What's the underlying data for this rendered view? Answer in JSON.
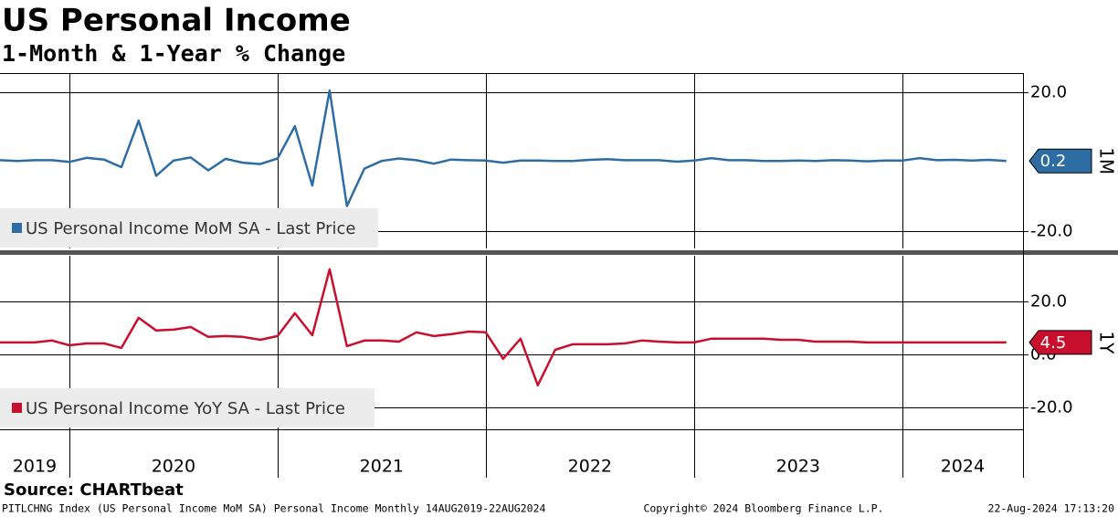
{
  "title": "US Personal Income",
  "subtitle": "1-Month & 1-Year % Change",
  "chart_data": [
    {
      "type": "line",
      "axis_label": "1M",
      "x": [
        2019.667,
        2019.75,
        2019.833,
        2019.917,
        2020,
        2020.083,
        2020.167,
        2020.25,
        2020.333,
        2020.417,
        2020.5,
        2020.583,
        2020.667,
        2020.75,
        2020.833,
        2020.917,
        2021,
        2021.083,
        2021.167,
        2021.25,
        2021.333,
        2021.417,
        2021.5,
        2021.583,
        2021.667,
        2021.75,
        2021.833,
        2021.917,
        2022,
        2022.083,
        2022.167,
        2022.25,
        2022.333,
        2022.417,
        2022.5,
        2022.583,
        2022.667,
        2022.75,
        2022.833,
        2022.917,
        2023,
        2023.083,
        2023.167,
        2023.25,
        2023.333,
        2023.417,
        2023.5,
        2023.583,
        2023.667,
        2023.75,
        2023.833,
        2023.917,
        2024,
        2024.083,
        2024.167,
        2024.25,
        2024.333,
        2024.417,
        2024.5
      ],
      "xlim": [
        2019.667,
        2024.58
      ],
      "xticks": [
        2020,
        2021,
        2022,
        2023,
        2024
      ],
      "ylim": [
        -25,
        25.5
      ],
      "yticks": [
        {
          "value": 20,
          "label": "20.0"
        },
        {
          "value": -20,
          "label": "-20.0"
        }
      ],
      "grid": true,
      "series": [
        {
          "name": "US Personal Income MoM SA - Last Price",
          "color": "#2e6da4",
          "values": [
            0.4,
            0.2,
            0.4,
            0.4,
            -0.1,
            1.1,
            0.6,
            -1.6,
            11.8,
            -4.1,
            0.3,
            1.2,
            -2.5,
            0.8,
            -0.3,
            -0.7,
            0.9,
            10.2,
            -6.9,
            20.5,
            -12.8,
            -2.0,
            0.2,
            0.9,
            0.4,
            -0.6,
            0.6,
            0.4,
            0.3,
            -0.3,
            0.3,
            0.3,
            0.2,
            0.2,
            0.5,
            0.7,
            0.4,
            0.4,
            0.4,
            0.0,
            0.3,
            1.0,
            0.4,
            0.4,
            0.2,
            0.2,
            0.3,
            0.2,
            0.4,
            0.3,
            0.1,
            0.3,
            0.3,
            1.0,
            0.4,
            0.5,
            0.3,
            0.5,
            0.2
          ]
        }
      ]
    },
    {
      "type": "line",
      "axis_label": "1Y",
      "x": [
        2019.667,
        2019.75,
        2019.833,
        2019.917,
        2020,
        2020.083,
        2020.167,
        2020.25,
        2020.333,
        2020.417,
        2020.5,
        2020.583,
        2020.667,
        2020.75,
        2020.833,
        2020.917,
        2021,
        2021.083,
        2021.167,
        2021.25,
        2021.333,
        2021.417,
        2021.5,
        2021.583,
        2021.667,
        2021.75,
        2021.833,
        2021.917,
        2022,
        2022.083,
        2022.167,
        2022.25,
        2022.333,
        2022.417,
        2022.5,
        2022.583,
        2022.667,
        2022.75,
        2022.833,
        2022.917,
        2023,
        2023.083,
        2023.167,
        2023.25,
        2023.333,
        2023.417,
        2023.5,
        2023.583,
        2023.667,
        2023.75,
        2023.833,
        2023.917,
        2024,
        2024.083,
        2024.167,
        2024.25,
        2024.333,
        2024.417,
        2024.5
      ],
      "xlim": [
        2019.667,
        2024.58
      ],
      "xticks": [
        2020,
        2021,
        2022,
        2023,
        2024
      ],
      "year_labels": [
        2019,
        2020,
        2021,
        2022,
        2023,
        2024
      ],
      "ylim": [
        -28.3,
        37.2
      ],
      "yticks": [
        {
          "value": 20,
          "label": "20.0"
        },
        {
          "value": 0,
          "label": "0.0"
        },
        {
          "value": -20,
          "label": "-20.0"
        }
      ],
      "grid": true,
      "series": [
        {
          "name": "US Personal Income YoY SA - Last Price",
          "color": "#c8102e",
          "values": [
            4.5,
            4.5,
            4.5,
            5.2,
            3.4,
            4.1,
            4.1,
            2.4,
            13.8,
            9.0,
            9.3,
            10.3,
            6.6,
            6.9,
            6.6,
            5.5,
            6.9,
            15.5,
            7.2,
            32.1,
            3.1,
            5.2,
            5.2,
            4.8,
            8.3,
            6.9,
            7.6,
            8.6,
            8.3,
            -1.7,
            5.9,
            -11.7,
            1.7,
            3.8,
            3.8,
            3.8,
            4.1,
            5.2,
            4.8,
            4.5,
            4.5,
            5.9,
            5.9,
            5.9,
            5.9,
            5.5,
            5.5,
            4.8,
            4.8,
            4.8,
            4.5,
            4.5,
            4.5,
            4.5,
            4.5,
            4.5,
            4.5,
            4.5,
            4.5
          ]
        }
      ]
    }
  ],
  "source": "Source: CHARTbeat",
  "footer": {
    "left": "PITLCHNG Index (US Personal Income MoM SA) Personal Income  Monthly 14AUG2019-22AUG2024",
    "center": "Copyright© 2024 Bloomberg Finance L.P.",
    "right": "22-Aug-2024 17:13:20"
  }
}
